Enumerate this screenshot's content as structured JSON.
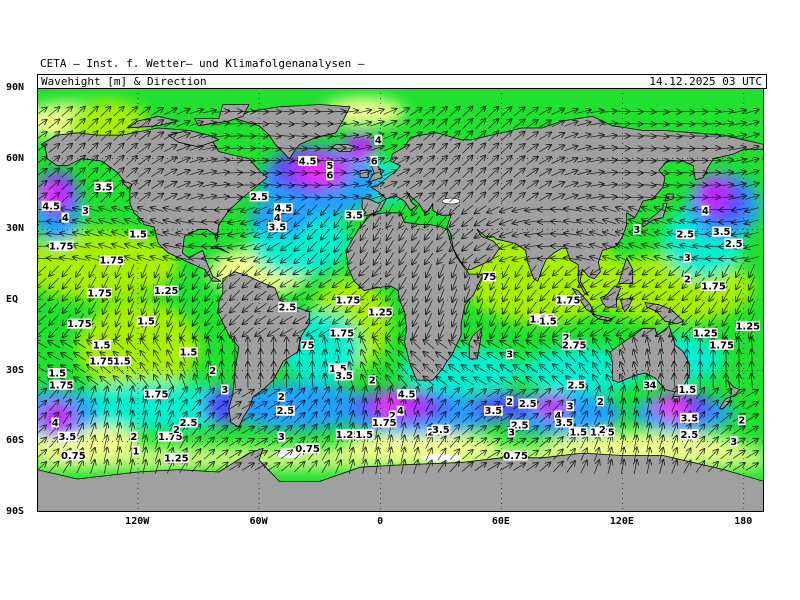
{
  "header": {
    "title": "CETA — Inst. f. Wetter— und Klimafolgenanalysen —",
    "variable": "Wavehight [m] & Direction",
    "timestamp": "14.12.2025 03 UTC"
  },
  "axes": {
    "lat_labels": [
      "90N",
      "60N",
      "30N",
      "EQ",
      "30S",
      "60S",
      "90S"
    ],
    "lon_labels": [
      "120W",
      "60W",
      "0",
      "60E",
      "120E",
      "180"
    ]
  },
  "colors": {
    "land": "#a0a0a0",
    "ice": "#ffffff",
    "wave_scale": [
      "#f0ff90",
      "#a8f000",
      "#20e030",
      "#00f0d0",
      "#20a0ff",
      "#5050ff",
      "#c020ff",
      "#ff30ff"
    ]
  },
  "wave_labels": [
    {
      "t": "4",
      "lon": -1,
      "lat": 68
    },
    {
      "t": "4.5",
      "lon": -36,
      "lat": 59
    },
    {
      "t": "5",
      "lon": -25,
      "lat": 57
    },
    {
      "t": "6",
      "lon": -25,
      "lat": 53
    },
    {
      "t": "6",
      "lon": -3,
      "lat": 59
    },
    {
      "t": "4.5",
      "lon": -48,
      "lat": 39
    },
    {
      "t": "4",
      "lon": -51,
      "lat": 35
    },
    {
      "t": "3.5",
      "lon": -51,
      "lat": 31
    },
    {
      "t": "3.5",
      "lon": -13,
      "lat": 36
    },
    {
      "t": "2.5",
      "lon": -60,
      "lat": 44
    },
    {
      "t": "3.5",
      "lon": -137,
      "lat": 48
    },
    {
      "t": "4.5",
      "lon": -163,
      "lat": 40
    },
    {
      "t": "4",
      "lon": -156,
      "lat": 35
    },
    {
      "t": "3",
      "lon": -146,
      "lat": 38
    },
    {
      "t": "1.75",
      "lon": -158,
      "lat": 23
    },
    {
      "t": "1.5",
      "lon": -120,
      "lat": 28
    },
    {
      "t": "1.75",
      "lon": -133,
      "lat": 17
    },
    {
      "t": "1.75",
      "lon": -139,
      "lat": 3
    },
    {
      "t": "1.25",
      "lon": -106,
      "lat": 4
    },
    {
      "t": "1.75",
      "lon": -149,
      "lat": -10
    },
    {
      "t": "1.5",
      "lon": -116,
      "lat": -9
    },
    {
      "t": "1.5",
      "lon": -138,
      "lat": -19
    },
    {
      "t": "1.75",
      "lon": -138,
      "lat": -26
    },
    {
      "t": "1.5",
      "lon": -128,
      "lat": -26
    },
    {
      "t": "1.5",
      "lon": -95,
      "lat": -22
    },
    {
      "t": "2",
      "lon": -83,
      "lat": -30
    },
    {
      "t": "1.5",
      "lon": -160,
      "lat": -31
    },
    {
      "t": "1.75",
      "lon": -158,
      "lat": -36
    },
    {
      "t": "1.75",
      "lon": -111,
      "lat": -40
    },
    {
      "t": "3",
      "lon": -77,
      "lat": -38
    },
    {
      "t": "4",
      "lon": -161,
      "lat": -52
    },
    {
      "t": "3.5",
      "lon": -155,
      "lat": -58
    },
    {
      "t": "2",
      "lon": -122,
      "lat": -58
    },
    {
      "t": "1.75",
      "lon": -104,
      "lat": -58
    },
    {
      "t": "2",
      "lon": -101,
      "lat": -55
    },
    {
      "t": "2.5",
      "lon": -95,
      "lat": -52
    },
    {
      "t": "1",
      "lon": -121,
      "lat": -64
    },
    {
      "t": "0.75",
      "lon": -152,
      "lat": -66
    },
    {
      "t": "1.25",
      "lon": -101,
      "lat": -67
    },
    {
      "t": "2.5",
      "lon": -46,
      "lat": -3
    },
    {
      "t": "1.75",
      "lon": -16,
      "lat": 0
    },
    {
      "t": "1.25",
      "lon": 0,
      "lat": -5
    },
    {
      "t": "75",
      "lon": -36,
      "lat": -19
    },
    {
      "t": "1.75",
      "lon": -19,
      "lat": -14
    },
    {
      "t": "1.5",
      "lon": -21,
      "lat": -29
    },
    {
      "t": "3.5",
      "lon": -18,
      "lat": -32
    },
    {
      "t": "2",
      "lon": -4,
      "lat": -34
    },
    {
      "t": "4.5",
      "lon": 13,
      "lat": -40
    },
    {
      "t": "4",
      "lon": 10,
      "lat": -47
    },
    {
      "t": "2",
      "lon": 6,
      "lat": -49
    },
    {
      "t": "1.75",
      "lon": 2,
      "lat": -52
    },
    {
      "t": "2",
      "lon": -49,
      "lat": -41
    },
    {
      "t": "2.5",
      "lon": -47,
      "lat": -47
    },
    {
      "t": "3",
      "lon": -49,
      "lat": -58
    },
    {
      "t": "1.25",
      "lon": -16,
      "lat": -57
    },
    {
      "t": "1.5",
      "lon": -8,
      "lat": -57
    },
    {
      "t": "0.75",
      "lon": -36,
      "lat": -63
    },
    {
      "t": "2",
      "lon": 25,
      "lat": -56
    },
    {
      "t": "3.5",
      "lon": 30,
      "lat": -55
    },
    {
      "t": "3.5",
      "lon": 56,
      "lat": -47
    },
    {
      "t": "2",
      "lon": 64,
      "lat": -43
    },
    {
      "t": "2.5",
      "lon": 73,
      "lat": -44
    },
    {
      "t": "2.5",
      "lon": 69,
      "lat": -53
    },
    {
      "t": "3",
      "lon": 65,
      "lat": -56
    },
    {
      "t": "0.75",
      "lon": 67,
      "lat": -66
    },
    {
      "t": "4",
      "lon": 88,
      "lat": -49
    },
    {
      "t": "3",
      "lon": 94,
      "lat": -45
    },
    {
      "t": "3.5",
      "lon": 91,
      "lat": -52
    },
    {
      "t": "1.5",
      "lon": 98,
      "lat": -56
    },
    {
      "t": "2.5",
      "lon": 97,
      "lat": -36
    },
    {
      "t": "2",
      "lon": 109,
      "lat": -43
    },
    {
      "t": "1.75",
      "lon": 110,
      "lat": -56
    },
    {
      "t": "2",
      "lon": 110,
      "lat": -55
    },
    {
      "t": "3",
      "lon": 132,
      "lat": -36
    },
    {
      "t": "4",
      "lon": 135,
      "lat": -36
    },
    {
      "t": "1.5",
      "lon": 152,
      "lat": -38
    },
    {
      "t": "3.5",
      "lon": 153,
      "lat": -50
    },
    {
      "t": "2.5",
      "lon": 153,
      "lat": -57
    },
    {
      "t": "2",
      "lon": 179,
      "lat": -51
    },
    {
      "t": "3",
      "lon": 175,
      "lat": -60
    },
    {
      "t": "1.25",
      "lon": 80,
      "lat": -8
    },
    {
      "t": "1.5",
      "lon": 83,
      "lat": -9
    },
    {
      "t": "2",
      "lon": 92,
      "lat": -16
    },
    {
      "t": "2.75",
      "lon": 96,
      "lat": -19
    },
    {
      "t": "3",
      "lon": 64,
      "lat": -23
    },
    {
      "t": "75",
      "lon": 54,
      "lat": 10
    },
    {
      "t": "1.75",
      "lon": 93,
      "lat": 0
    },
    {
      "t": "3",
      "lon": 127,
      "lat": 30
    },
    {
      "t": "2.5",
      "lon": 151,
      "lat": 28
    },
    {
      "t": "3",
      "lon": 152,
      "lat": 18
    },
    {
      "t": "2",
      "lon": 152,
      "lat": 9
    },
    {
      "t": "1.75",
      "lon": 165,
      "lat": 6
    },
    {
      "t": "4",
      "lon": 161,
      "lat": 38
    },
    {
      "t": "3.5",
      "lon": 169,
      "lat": 29
    },
    {
      "t": "2.5",
      "lon": 175,
      "lat": 24
    },
    {
      "t": "1.25",
      "lon": 161,
      "lat": -14
    },
    {
      "t": "1.75",
      "lon": 169,
      "lat": -19
    },
    {
      "t": "1.25",
      "lon": 182,
      "lat": -11
    }
  ]
}
